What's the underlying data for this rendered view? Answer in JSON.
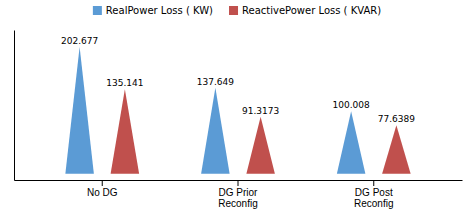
{
  "chart_data": {
    "type": "bar",
    "categories": [
      "No DG",
      "DG Prior\nReconfig",
      "DG Post\nReconfig"
    ],
    "series": [
      {
        "name": "RealPower Loss ( KW)",
        "color": "#5B9BD5",
        "values": [
          202.677,
          137.649,
          100.008
        ]
      },
      {
        "name": "ReactivePower Loss ( KVAR)",
        "color": "#C0504D",
        "values": [
          135.141,
          91.3173,
          77.6389
        ]
      }
    ],
    "ylim": [
      -10,
      230
    ],
    "data_labels": true,
    "legend": "top",
    "tick_labels": "x"
  }
}
